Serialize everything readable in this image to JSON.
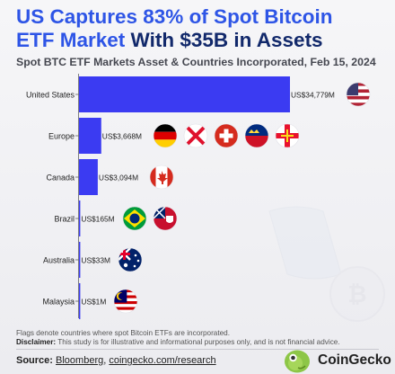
{
  "title": {
    "part1": "US Captures 83% of Spot Bitcoin",
    "part2": "ETF Market",
    "part3": "With $35B in Assets"
  },
  "subtitle": "Spot BTC ETF Markets Asset & Countries Incorporated, Feb 15, 2024",
  "chart_data": {
    "type": "bar",
    "orientation": "horizontal",
    "title": "US Captures 83% of Spot Bitcoin ETF Market With $35B in Assets",
    "subtitle": "Spot BTC ETF Markets Asset & Countries Incorporated, Feb 15, 2024",
    "categories": [
      "United States",
      "Europe",
      "Canada",
      "Brazil",
      "Australia",
      "Malaysia"
    ],
    "values": [
      34779,
      3668,
      3094,
      165,
      33,
      1
    ],
    "value_labels": [
      "US$34,779M",
      "US$3,668M",
      "US$3,094M",
      "US$165M",
      "US$33M",
      "US$1M"
    ],
    "unit": "US$ millions",
    "bar_color": "#3b3bf2",
    "grid": false,
    "legend": "none",
    "flags": [
      [
        "us-flag-icon"
      ],
      [
        "germany-flag-icon",
        "jersey-flag-icon",
        "switzerland-flag-icon",
        "liechtenstein-flag-icon",
        "guernsey-flag-icon"
      ],
      [
        "canada-flag-icon"
      ],
      [
        "brazil-flag-icon",
        "bermuda-flag-icon"
      ],
      [
        "australia-flag-icon"
      ],
      [
        "malaysia-flag-icon"
      ]
    ]
  },
  "footer": {
    "note": "Flags denote countries where spot Bitcoin ETFs are incorporated.",
    "disclaimer_label": "Disclaimer:",
    "disclaimer_text": "This study is for illustrative and informational purposes only, and is not financial advice.",
    "source_label": "Source:",
    "source_link1": "Bloomberg",
    "source_sep": ",",
    "source_link2": "coingecko.com/research",
    "brand": "CoinGecko"
  },
  "colors": {
    "title_dark": "#12296b",
    "title_accent": "#2e55e6",
    "bar": "#3b3bf2",
    "brand_green": "#8dc647"
  }
}
